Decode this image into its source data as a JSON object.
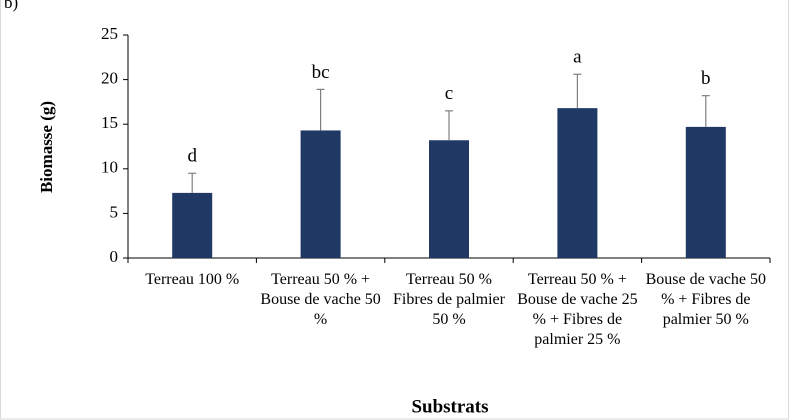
{
  "chart_data": {
    "type": "bar",
    "panel_label": "b)",
    "y_label": "Biomasse (g)",
    "x_label": "Substrats",
    "categories": [
      "Terreau 100 %",
      "Terreau 50 % + Bouse de vache 50 %",
      "Terreau 50 % Fibres de palmier 50 %",
      "Terreau 50 % + Bouse de vache 25 % + Fibres de palmier 25 %",
      "Bouse de vache 50 % + Fibres de palmier 50 %"
    ],
    "values": [
      7.3,
      14.3,
      13.2,
      16.8,
      14.7
    ],
    "errors": [
      2.2,
      4.6,
      3.3,
      3.8,
      3.5
    ],
    "annotations": [
      "d",
      "bc",
      "c",
      "a",
      "b"
    ],
    "color": "#203864",
    "ylim": [
      0,
      25
    ],
    "yticks": [
      0,
      5,
      10,
      15,
      20,
      25
    ],
    "grid": false
  }
}
